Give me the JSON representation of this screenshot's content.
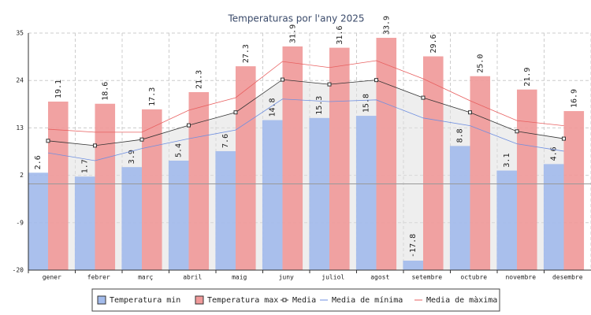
{
  "chart_data": {
    "type": "bar",
    "title": "Temperaturas por l'any 2025",
    "categories": [
      "gener",
      "febrer",
      "març",
      "abril",
      "maig",
      "juny",
      "juliol",
      "agost",
      "setembre",
      "octubre",
      "novembre",
      "desembre"
    ],
    "ylim": [
      -20,
      35
    ],
    "yticks": [
      -20,
      -9,
      2,
      13,
      24,
      35
    ],
    "grid": true,
    "hline": 0,
    "series": [
      {
        "name": "Temperatura min",
        "type": "bar",
        "color": "#a3bbeb",
        "values": [
          2.6,
          1.7,
          3.9,
          5.4,
          7.6,
          14.8,
          15.3,
          15.8,
          -17.8,
          8.8,
          3.1,
          4.6
        ],
        "value_labels": [
          "2.6",
          "1.7",
          "3.9",
          "5.4",
          "7.6",
          "14.8",
          "15.3",
          "15.8",
          "-17.8",
          "8.8",
          "3.1",
          "4.6"
        ]
      },
      {
        "name": "Temperatura max",
        "type": "bar",
        "color": "#f09a9a",
        "values": [
          19.1,
          18.6,
          17.3,
          21.3,
          27.3,
          31.9,
          31.6,
          33.9,
          29.6,
          25.0,
          21.9,
          16.9
        ],
        "value_labels": [
          "19.1",
          "18.6",
          "17.3",
          "21.3",
          "27.3",
          "31.9",
          "31.6",
          "33.9",
          "29.6",
          "25.0",
          "21.9",
          "16.9"
        ]
      },
      {
        "name": "Media",
        "type": "line",
        "color": "#333333",
        "markers": true,
        "area": true,
        "values": [
          10.0,
          8.9,
          10.3,
          13.6,
          16.6,
          24.2,
          23.1,
          24.1,
          20.0,
          16.6,
          12.2,
          10.5
        ]
      },
      {
        "name": "Media de mínima",
        "type": "line",
        "color": "#6f8fe0",
        "values": [
          7.2,
          5.4,
          8.2,
          10.5,
          12.5,
          19.7,
          19.1,
          19.5,
          15.3,
          13.5,
          9.3,
          7.6
        ]
      },
      {
        "name": "Media de màxima",
        "type": "line",
        "color": "#e86060",
        "values": [
          12.7,
          12.0,
          12.0,
          17.1,
          20.0,
          28.4,
          27.0,
          28.6,
          24.4,
          19.3,
          14.7,
          13.5
        ]
      }
    ]
  }
}
